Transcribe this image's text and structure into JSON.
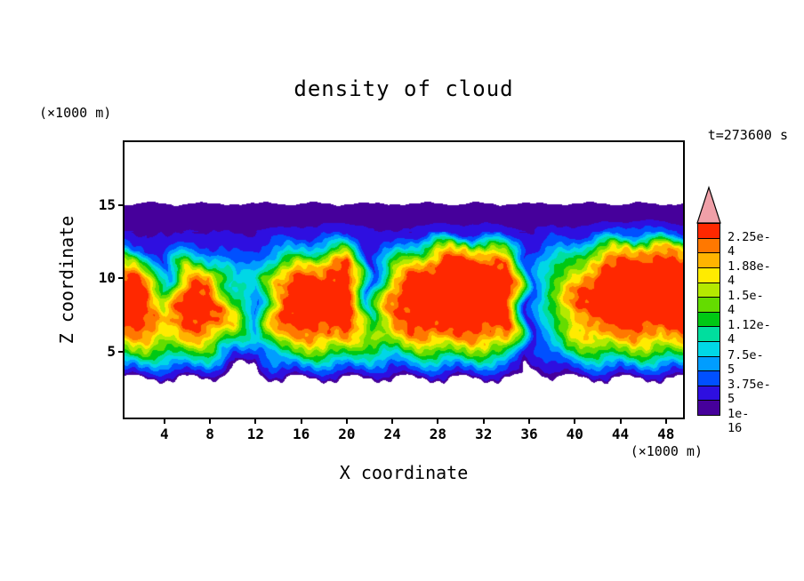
{
  "chart_data": {
    "type": "heatmap",
    "title": "density of cloud",
    "time_label": "t=273600 s",
    "xlabel": "X coordinate",
    "ylabel": "Z coordinate",
    "x_unit": "(×1000 m)",
    "y_unit": "(×1000 m)",
    "xlim": [
      0.5,
      49.5
    ],
    "zlim": [
      0.5,
      19.3
    ],
    "x_ticks": [
      4,
      8,
      12,
      16,
      20,
      24,
      28,
      32,
      36,
      40,
      44,
      48
    ],
    "z_ticks": [
      5,
      10,
      15
    ],
    "colorbar_labels": [
      "1e-16",
      "3.75e-5",
      "7.5e-5",
      "1.12e-4",
      "1.5e-4",
      "1.88e-4",
      "2.25e-4"
    ],
    "level_values": [
      0,
      1.875,
      3.75,
      5.625,
      7.5,
      9.375,
      11.25,
      13.125,
      15,
      16.875,
      18.75,
      20.625,
      22.5
    ],
    "value_scale": 1e-05,
    "segment_colors": [
      "#46009b",
      "#2e0fe0",
      "#0050ff",
      "#009dff",
      "#00d7e6",
      "#00de9e",
      "#00c814",
      "#64dc00",
      "#b4e900",
      "#ffeb00",
      "#ffb400",
      "#ff7800",
      "#ff2800"
    ],
    "overflow_color": "#f0a0a8",
    "background_color": "#ffffff",
    "grid": {
      "x": [
        0,
        2,
        4,
        6,
        8,
        10,
        12,
        14,
        16,
        18,
        20,
        22,
        24,
        26,
        28,
        30,
        32,
        34,
        36,
        38,
        40,
        42,
        44,
        46,
        48,
        50
      ],
      "z": [
        0,
        1,
        2,
        3,
        4,
        5,
        6,
        7,
        8,
        9,
        10,
        11,
        12,
        13,
        14,
        15,
        16
      ],
      "values": [
        [
          0,
          0,
          0,
          0,
          0,
          0,
          0,
          0,
          0,
          0,
          0,
          0,
          0,
          0,
          0,
          0,
          0,
          0,
          0,
          0,
          0,
          0,
          0,
          0,
          0,
          0
        ],
        [
          0,
          0,
          0,
          0,
          0,
          0,
          0,
          0,
          0,
          0,
          0,
          0,
          0,
          0,
          0,
          0,
          0,
          0,
          0,
          0,
          0,
          0,
          0,
          0,
          0,
          0
        ],
        [
          0,
          0,
          0,
          0,
          0,
          0,
          0,
          0,
          0,
          0,
          0,
          0,
          0,
          0,
          0,
          0,
          0,
          0,
          0,
          0,
          0,
          0,
          0,
          0,
          0,
          0
        ],
        [
          0,
          0,
          0,
          0,
          0,
          0,
          0,
          0,
          0,
          0,
          0,
          0,
          0,
          0,
          0,
          0,
          0,
          0,
          0,
          0,
          0,
          0,
          0,
          0,
          0,
          0
        ],
        [
          6,
          6,
          6,
          6,
          5,
          0,
          0,
          5,
          6,
          6,
          6,
          5,
          4,
          6,
          6,
          6,
          6,
          6,
          0,
          3,
          5,
          6,
          6,
          6,
          6,
          6
        ],
        [
          14,
          14,
          12,
          13,
          12,
          6,
          3,
          12,
          14,
          14,
          14,
          11,
          10,
          13,
          14,
          14,
          14,
          14,
          2,
          6,
          11,
          13,
          14,
          14,
          14,
          14
        ],
        [
          20,
          20,
          17,
          20,
          19,
          14,
          8,
          18,
          20,
          21,
          21,
          15,
          17,
          20,
          21,
          21,
          21,
          20,
          3,
          9,
          16,
          19,
          20,
          20,
          20,
          20
        ],
        [
          24,
          24,
          19,
          24,
          23,
          18,
          6,
          22,
          24,
          24,
          25,
          10,
          21,
          24,
          25,
          25,
          25,
          24,
          2,
          11,
          19,
          23,
          24,
          24,
          24,
          24
        ],
        [
          25,
          25,
          16,
          25,
          24,
          16,
          5,
          23,
          25,
          25,
          26,
          7,
          22,
          25,
          26,
          26,
          26,
          26,
          3,
          12,
          21,
          25,
          26,
          26,
          26,
          25
        ],
        [
          25,
          25,
          12,
          24,
          23,
          12,
          7,
          22,
          25,
          25,
          26,
          5,
          21,
          25,
          26,
          26,
          26,
          26,
          4,
          13,
          21,
          25,
          26,
          26,
          26,
          26
        ],
        [
          24,
          22,
          7,
          20,
          22,
          8,
          9,
          18,
          23,
          24,
          25,
          4,
          18,
          24,
          26,
          26,
          26,
          25,
          5,
          12,
          18,
          24,
          26,
          26,
          26,
          25
        ],
        [
          18,
          14,
          4,
          14,
          10,
          5,
          6,
          12,
          17,
          19,
          23,
          3,
          12,
          20,
          24,
          25,
          25,
          22,
          4,
          10,
          13,
          21,
          24,
          25,
          24,
          23
        ],
        [
          5,
          4,
          2.5,
          6,
          4,
          3,
          4,
          6,
          8,
          9,
          14,
          2.5,
          5,
          10,
          16,
          18,
          17,
          12,
          3,
          6,
          7,
          13,
          18,
          20,
          19,
          16
        ],
        [
          2.5,
          2,
          1.5,
          2.5,
          2,
          2,
          2,
          2.5,
          3,
          3,
          4,
          2,
          2,
          3,
          4,
          4,
          4,
          3,
          2,
          3,
          3,
          4,
          6,
          6,
          5,
          4
        ],
        [
          1,
          1,
          1,
          1,
          1,
          1,
          1,
          1,
          1,
          1,
          1.5,
          1,
          1,
          1,
          1,
          1,
          1,
          1,
          1,
          1,
          1,
          1,
          1.5,
          1.5,
          1.5,
          1
        ],
        [
          1,
          1,
          1,
          1,
          1,
          1,
          1,
          1,
          1,
          1,
          1,
          1,
          1,
          1,
          1,
          1,
          1,
          1,
          1,
          1,
          1,
          1,
          1,
          1,
          1,
          1
        ],
        [
          0,
          0,
          0,
          0,
          0,
          0,
          0,
          0,
          0,
          0,
          0,
          0,
          0,
          0,
          0,
          0,
          0,
          0,
          0,
          0,
          0,
          0,
          0,
          0,
          0,
          0
        ]
      ]
    }
  }
}
